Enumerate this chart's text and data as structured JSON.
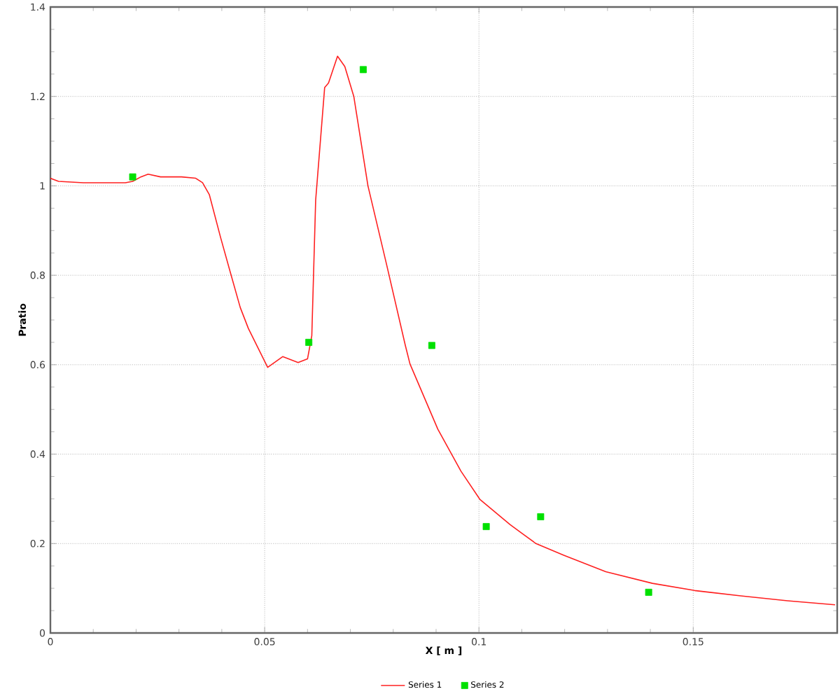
{
  "chart_data": {
    "type": "line",
    "xlabel": "X [ m ]",
    "ylabel": "Pratio",
    "xlim": [
      0,
      0.1836
    ],
    "ylim": [
      0,
      1.4
    ],
    "xticks": [
      0,
      0.05,
      0.1,
      0.15
    ],
    "yticks": [
      0,
      0.2,
      0.4,
      0.6,
      0.8,
      1,
      1.2,
      1.4
    ],
    "grid": true,
    "legend": "bottom",
    "series": [
      {
        "name": "Series 1",
        "color": "#ff2020",
        "marker": "none",
        "line_style": "solid",
        "x": [
          0,
          0.0019,
          0.0077,
          0.0175,
          0.0192,
          0.0211,
          0.0228,
          0.0257,
          0.0306,
          0.0339,
          0.0355,
          0.0371,
          0.0397,
          0.042,
          0.0443,
          0.0462,
          0.0507,
          0.0542,
          0.0578,
          0.06,
          0.061,
          0.0619,
          0.064,
          0.0649,
          0.067,
          0.0687,
          0.0708,
          0.0741,
          0.0785,
          0.0828,
          0.0839,
          0.0904,
          0.0958,
          0.1002,
          0.1073,
          0.1133,
          0.1198,
          0.1296,
          0.1405,
          0.1503,
          0.1611,
          0.172,
          0.1831
        ],
        "values": [
          1.017,
          1.01,
          1.007,
          1.007,
          1.01,
          1.02,
          1.026,
          1.02,
          1.02,
          1.017,
          1.007,
          0.98,
          0.885,
          0.806,
          0.728,
          0.681,
          0.594,
          0.618,
          0.605,
          0.613,
          0.665,
          0.968,
          1.22,
          1.23,
          1.29,
          1.267,
          1.2,
          1.0,
          0.822,
          0.644,
          0.602,
          0.456,
          0.362,
          0.299,
          0.242,
          0.2,
          0.174,
          0.137,
          0.111,
          0.095,
          0.083,
          0.072,
          0.063
        ]
      },
      {
        "name": "Series 2",
        "type": "scatter",
        "color": "#00e000",
        "marker": "square",
        "x": [
          0.0192,
          0.0603,
          0.073,
          0.089,
          0.1017,
          0.1144,
          0.1396
        ],
        "values": [
          1.02,
          0.65,
          1.26,
          0.643,
          0.238,
          0.26,
          0.091
        ]
      }
    ]
  }
}
